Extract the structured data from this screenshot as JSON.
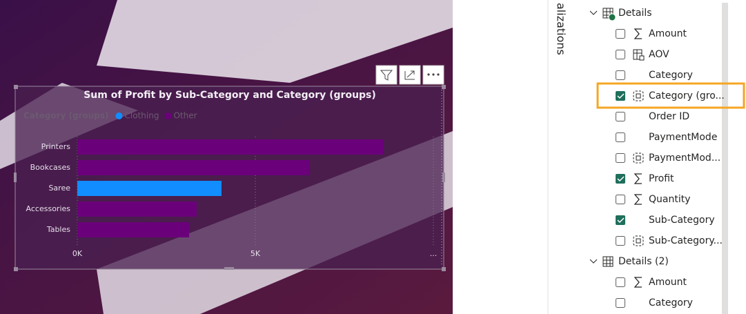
{
  "chart_data": {
    "type": "bar",
    "orientation": "horizontal",
    "title": "Sum of Profit by Sub-Category and Category (groups)",
    "legend_title": "Category (groups)",
    "categories": [
      "Printers",
      "Bookcases",
      "Saree",
      "Accessories",
      "Tables"
    ],
    "series": [
      {
        "name": "Clothing",
        "color": "#118dff",
        "values": [
          null,
          null,
          4050,
          null,
          null
        ]
      },
      {
        "name": "Other",
        "color": "#6b007b",
        "values": [
          8605,
          6531,
          null,
          3353,
          3140
        ]
      }
    ],
    "xlim": [
      0,
      10000
    ],
    "xticks": [
      {
        "value": 0,
        "label": "0K"
      },
      {
        "value": 5000,
        "label": "5K"
      },
      {
        "value": 10000,
        "label": "..."
      }
    ],
    "grid": true
  },
  "pane": {
    "title": "alizations",
    "tables": [
      {
        "name": "Details",
        "fields": [
          {
            "label": "Amount",
            "icon": "sigma",
            "checked": false
          },
          {
            "label": "AOV",
            "icon": "calc",
            "checked": false
          },
          {
            "label": "Category",
            "icon": "none",
            "checked": false
          },
          {
            "label": "Category (gro...",
            "icon": "group",
            "checked": true,
            "highlighted": true
          },
          {
            "label": "Order ID",
            "icon": "none",
            "checked": false
          },
          {
            "label": "PaymentMode",
            "icon": "none",
            "checked": false
          },
          {
            "label": "PaymentMod...",
            "icon": "group",
            "checked": false
          },
          {
            "label": "Profit",
            "icon": "sigma",
            "checked": true
          },
          {
            "label": "Quantity",
            "icon": "sigma",
            "checked": false
          },
          {
            "label": "Sub-Category",
            "icon": "none",
            "checked": true
          },
          {
            "label": "Sub-Category...",
            "icon": "group",
            "checked": false
          }
        ]
      },
      {
        "name": "Details (2)",
        "fields": [
          {
            "label": "Amount",
            "icon": "sigma",
            "checked": false
          },
          {
            "label": "Category",
            "icon": "none",
            "checked": false
          }
        ]
      }
    ]
  }
}
